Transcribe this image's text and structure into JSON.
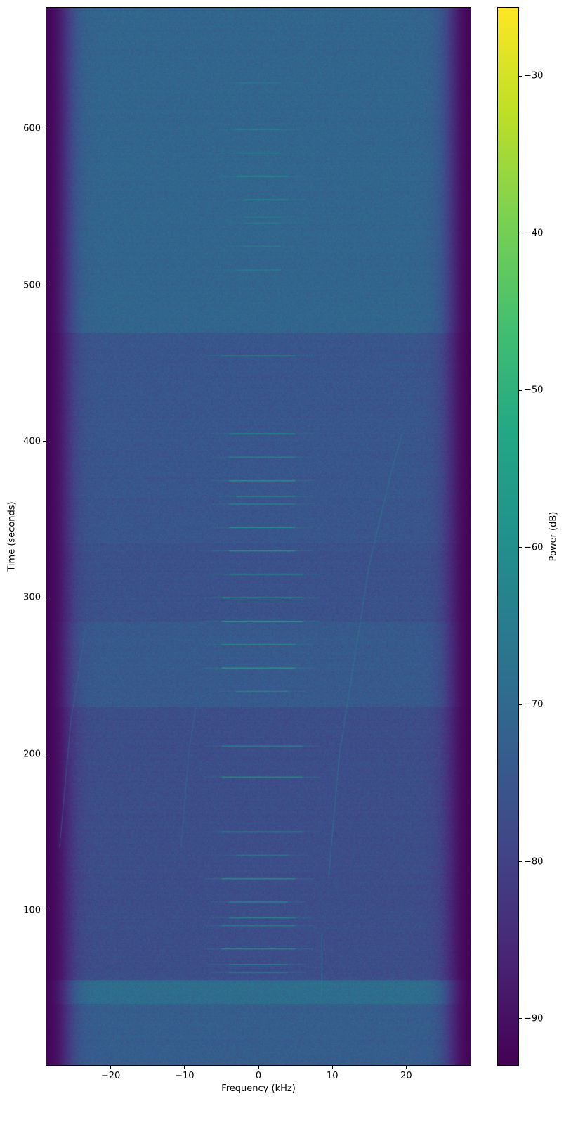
{
  "chart_data": {
    "type": "heatmap",
    "title": "",
    "xlabel": "Frequency (kHz)",
    "ylabel": "Time (seconds)",
    "colorbar_label": "Power (dB)",
    "colormap": "viridis",
    "xlim": [
      -28.8,
      28.8
    ],
    "ylim": [
      0.5,
      678
    ],
    "clim": [
      -93,
      -25.6
    ],
    "xticks": [
      -20,
      -10,
      0,
      10,
      20
    ],
    "xtick_labels": [
      "−20",
      "−10",
      "0",
      "10",
      "20"
    ],
    "yticks": [
      100,
      200,
      300,
      400,
      500,
      600
    ],
    "ytick_labels": [
      "100",
      "200",
      "300",
      "400",
      "500",
      "600"
    ],
    "cticks": [
      -30,
      -40,
      -50,
      -60,
      -70,
      -80,
      -90
    ],
    "ctick_labels": [
      "−30",
      "−40",
      "−50",
      "−60",
      "−70",
      "−80",
      "−90"
    ],
    "grid": false,
    "passband_edge_khz": 26,
    "out_of_band_level_db": -93,
    "background_bands": [
      {
        "t": [
          0.5,
          40
        ],
        "level_db": -73
      },
      {
        "t": [
          40,
          55
        ],
        "level_db": -69
      },
      {
        "t": [
          55,
          230
        ],
        "level_db": -77
      },
      {
        "t": [
          230,
          285
        ],
        "level_db": -74
      },
      {
        "t": [
          285,
          335
        ],
        "level_db": -76
      },
      {
        "t": [
          335,
          470
        ],
        "level_db": -75
      },
      {
        "t": [
          470,
          678
        ],
        "level_db": -71
      }
    ],
    "tone_lines": [
      {
        "t": 630,
        "f": [
          -3,
          3
        ],
        "level_db": -64
      },
      {
        "t": 600,
        "f": [
          -3,
          3
        ],
        "level_db": -62
      },
      {
        "t": 585,
        "f": [
          -3,
          3
        ],
        "level_db": -64
      },
      {
        "t": 570,
        "f": [
          -3,
          4
        ],
        "level_db": -58
      },
      {
        "t": 555,
        "f": [
          -2,
          4
        ],
        "level_db": -58
      },
      {
        "t": 544,
        "f": [
          -2,
          3
        ],
        "level_db": -62
      },
      {
        "t": 540,
        "f": [
          -2,
          3
        ],
        "level_db": -63
      },
      {
        "t": 525,
        "f": [
          -2,
          3
        ],
        "level_db": -62
      },
      {
        "t": 510,
        "f": [
          -3,
          3
        ],
        "level_db": -63
      },
      {
        "t": 455,
        "f": [
          -5,
          5
        ],
        "level_db": -62
      },
      {
        "t": 405,
        "f": [
          -4,
          5
        ],
        "level_db": -60
      },
      {
        "t": 390,
        "f": [
          -4,
          5
        ],
        "level_db": -60
      },
      {
        "t": 375,
        "f": [
          -4,
          5
        ],
        "level_db": -56
      },
      {
        "t": 365,
        "f": [
          -3,
          5
        ],
        "level_db": -58
      },
      {
        "t": 360,
        "f": [
          -4,
          5
        ],
        "level_db": -60
      },
      {
        "t": 345,
        "f": [
          -4,
          5
        ],
        "level_db": -56
      },
      {
        "t": 330,
        "f": [
          -4,
          5
        ],
        "level_db": -56
      },
      {
        "t": 315,
        "f": [
          -4,
          6
        ],
        "level_db": -58
      },
      {
        "t": 300,
        "f": [
          -5,
          6
        ],
        "level_db": -54
      },
      {
        "t": 285,
        "f": [
          -5,
          6
        ],
        "level_db": -56
      },
      {
        "t": 270,
        "f": [
          -5,
          5
        ],
        "level_db": -57
      },
      {
        "t": 255,
        "f": [
          -5,
          5
        ],
        "level_db": -55
      },
      {
        "t": 240,
        "f": [
          -3,
          4
        ],
        "level_db": -62
      },
      {
        "t": 205,
        "f": [
          -5,
          6
        ],
        "level_db": -60
      },
      {
        "t": 185,
        "f": [
          -5,
          6
        ],
        "level_db": -55
      },
      {
        "t": 150,
        "f": [
          -5,
          6
        ],
        "level_db": -58
      },
      {
        "t": 135,
        "f": [
          -3,
          4
        ],
        "level_db": -63
      },
      {
        "t": 120,
        "f": [
          -5,
          5
        ],
        "level_db": -56
      },
      {
        "t": 105,
        "f": [
          -4,
          4
        ],
        "level_db": -58
      },
      {
        "t": 95,
        "f": [
          -4,
          5
        ],
        "level_db": -56
      },
      {
        "t": 90,
        "f": [
          -5,
          5
        ],
        "level_db": -60
      },
      {
        "t": 75,
        "f": [
          -5,
          5
        ],
        "level_db": -58
      },
      {
        "t": 65,
        "f": [
          -4,
          4
        ],
        "level_db": -60
      },
      {
        "t": 60,
        "f": [
          -4,
          4
        ],
        "level_db": -60
      }
    ],
    "drift_lines": [
      {
        "points": [
          [
            8.6,
            45
          ],
          [
            8.6,
            85
          ]
        ],
        "level_db": -62
      },
      {
        "points": [
          [
            9.5,
            120
          ],
          [
            11,
            200
          ],
          [
            13,
            260
          ],
          [
            15,
            320
          ],
          [
            18,
            380
          ],
          [
            19.5,
            405
          ]
        ],
        "level_db": -64
      },
      {
        "points": [
          [
            -27,
            140
          ],
          [
            -25.5,
            220
          ],
          [
            -23.5,
            280
          ]
        ],
        "level_db": -68
      },
      {
        "points": [
          [
            -10.5,
            140
          ],
          [
            -9.5,
            200
          ],
          [
            -8.5,
            230
          ]
        ],
        "level_db": -68
      }
    ]
  }
}
